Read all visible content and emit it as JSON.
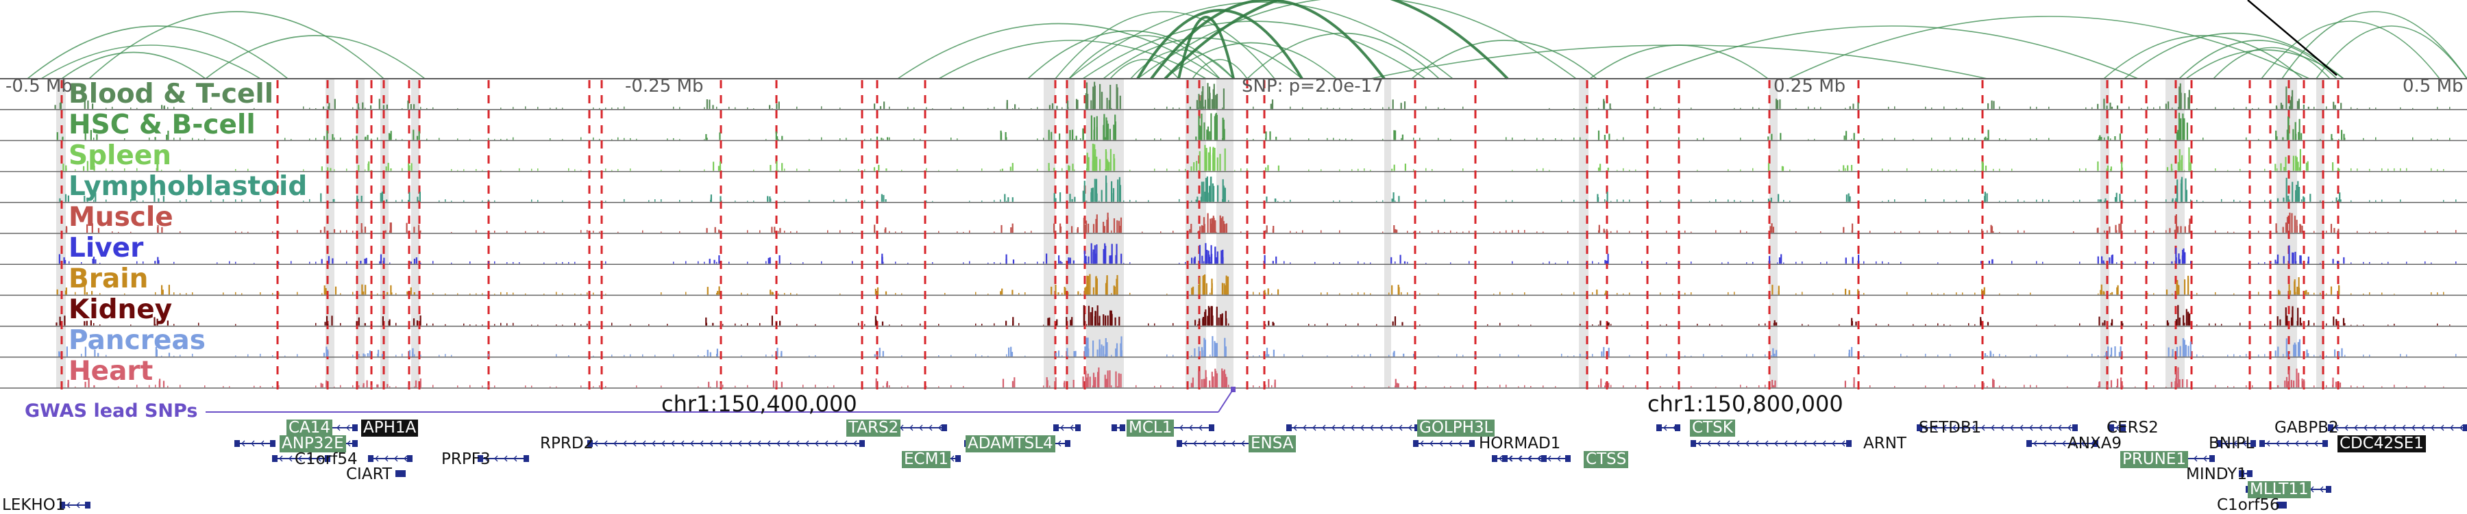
{
  "header": {
    "ticks": [
      {
        "label": "-0.5 Mb"
      },
      {
        "label": "-0.25 Mb"
      },
      {
        "label": "SNP: p=2.0e-17"
      },
      {
        "label": "0.25 Mb"
      },
      {
        "label": "0.5 Mb"
      }
    ]
  },
  "tracks": [
    {
      "name": "Blood & T-cell",
      "color": "#5a8a5a"
    },
    {
      "name": "HSC & B-cell",
      "color": "#4f9a4f"
    },
    {
      "name": "Spleen",
      "color": "#7ccc5a"
    },
    {
      "name": "Lymphoblastoid",
      "color": "#3f9a82"
    },
    {
      "name": "Muscle",
      "color": "#c0524c"
    },
    {
      "name": "Liver",
      "color": "#3b3bd8"
    },
    {
      "name": "Brain",
      "color": "#c48a1e"
    },
    {
      "name": "Kidney",
      "color": "#6b0a0a"
    },
    {
      "name": "Pancreas",
      "color": "#7c9ee0"
    },
    {
      "name": "Heart",
      "color": "#d4606e"
    }
  ],
  "chromosome": {
    "pos1": "chr1:150,400,000",
    "pos2": "chr1:150,800,000"
  },
  "gwas": {
    "label": "GWAS lead SNPs"
  },
  "genes": [
    {
      "name": "CA14",
      "style": "green"
    },
    {
      "name": "APH1A",
      "style": "black"
    },
    {
      "name": "ANP32E",
      "style": "green"
    },
    {
      "name": "C1orf54",
      "style": "plain"
    },
    {
      "name": "CIART",
      "style": "plain"
    },
    {
      "name": "PRPF3",
      "style": "plain"
    },
    {
      "name": "RPRD2",
      "style": "plain"
    },
    {
      "name": "TARS2",
      "style": "green"
    },
    {
      "name": "ECM1",
      "style": "green"
    },
    {
      "name": "ADAMTSL4",
      "style": "green"
    },
    {
      "name": "MCL1",
      "style": "green"
    },
    {
      "name": "ENSA",
      "style": "green"
    },
    {
      "name": "GOLPH3L",
      "style": "green"
    },
    {
      "name": "HORMAD1",
      "style": "plain"
    },
    {
      "name": "CTSS",
      "style": "green"
    },
    {
      "name": "CTSK",
      "style": "green"
    },
    {
      "name": "ARNT",
      "style": "plain"
    },
    {
      "name": "SETDB1",
      "style": "plain"
    },
    {
      "name": "CERS2",
      "style": "plain"
    },
    {
      "name": "ANXA9",
      "style": "plain"
    },
    {
      "name": "PRUNE1",
      "style": "green"
    },
    {
      "name": "MINDY1",
      "style": "plain"
    },
    {
      "name": "BNIPL",
      "style": "plain"
    },
    {
      "name": "GABPB2",
      "style": "plain"
    },
    {
      "name": "CDC42SE1",
      "style": "black"
    },
    {
      "name": "MLLT11",
      "style": "green"
    },
    {
      "name": "C1orf56",
      "style": "plain"
    },
    {
      "name": "LEKHO1",
      "style": "plain"
    }
  ]
}
